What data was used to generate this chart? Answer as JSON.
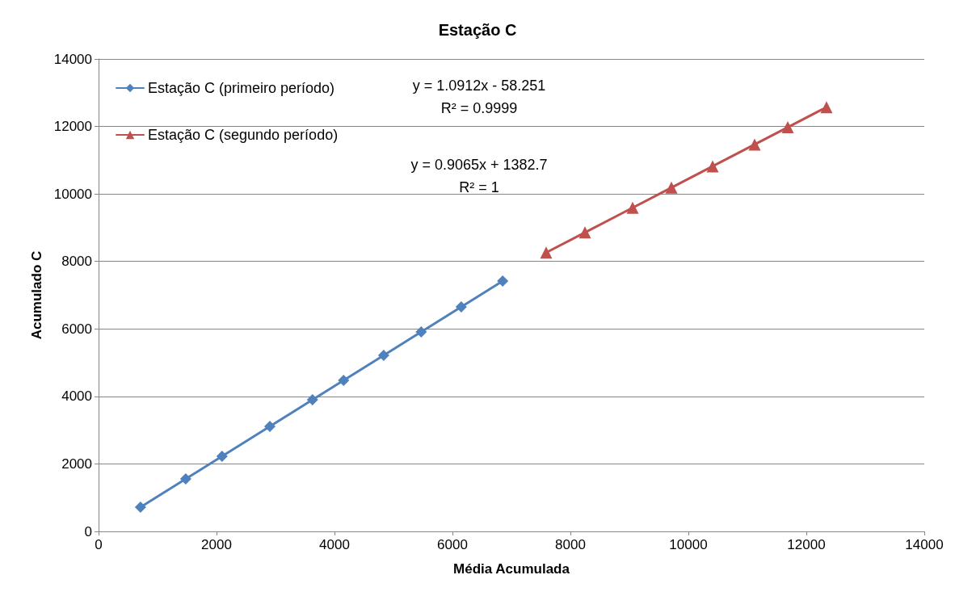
{
  "chart_data": {
    "type": "line",
    "title": "Estação C",
    "xlabel": "Média Acumulada",
    "ylabel": "Acumulado C",
    "xlim": [
      0,
      14000
    ],
    "xticks": [
      0,
      2000,
      4000,
      6000,
      8000,
      10000,
      12000,
      14000
    ],
    "ylim": [
      0,
      14000
    ],
    "yticks": [
      0,
      2000,
      4000,
      6000,
      8000,
      10000,
      12000,
      14000
    ],
    "grid": "y",
    "legend": "top left",
    "line_style": "solid",
    "annotations": [
      "y = 1.0912x - 58.251\nR² = 0.9999",
      "y = 0.9065x + 1382.7\nR² = 1"
    ],
    "series": [
      {
        "name": "Estação C (primeiro período)",
        "color": "#4f81bd",
        "marker": "diamond",
        "x": [
          711,
          1478,
          2093,
          2904,
          3627,
          4154,
          4834,
          5470,
          6149,
          6851
        ],
        "values": [
          718,
          1555,
          2225,
          3111,
          3900,
          4475,
          5217,
          5910,
          6652,
          7418
        ]
      },
      {
        "name": "Estação C (segundo período)",
        "color": "#c0504d",
        "marker": "triangle",
        "x": [
          7589,
          8247,
          9055,
          9712,
          10411,
          11123,
          11685,
          12342
        ],
        "values": [
          8262,
          8859,
          9591,
          10186,
          10820,
          11466,
          11975,
          12571
        ]
      }
    ]
  }
}
